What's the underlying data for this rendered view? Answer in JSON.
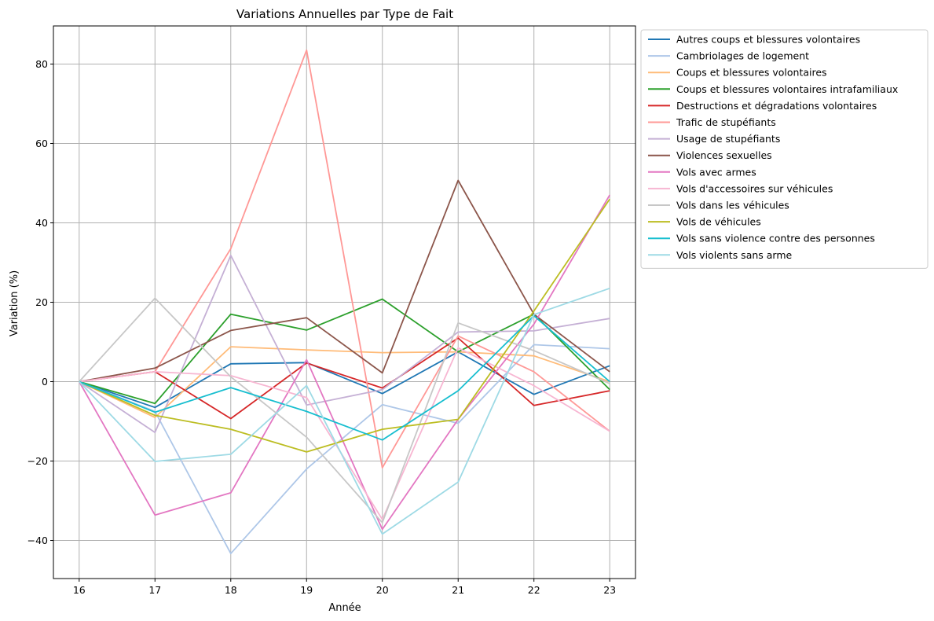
{
  "chart_data": {
    "type": "line",
    "title": "Variations Annuelles par Type de Fait",
    "xlabel": "Année",
    "ylabel": "Variation (%)",
    "x": [
      16,
      17,
      18,
      19,
      20,
      21,
      22,
      23
    ],
    "x_tick_labels": [
      "16",
      "17",
      "18",
      "19",
      "20",
      "21",
      "22",
      "23"
    ],
    "xlim": [
      15.66,
      23.34
    ],
    "ylim": [
      -49.6,
      89.6
    ],
    "y_ticks": [
      -40,
      -20,
      0,
      20,
      40,
      60,
      80
    ],
    "y_tick_labels": [
      "−40",
      "−20",
      "0",
      "20",
      "40",
      "60",
      "80"
    ],
    "grid": true,
    "legend_position": "outside-top-right",
    "series": [
      {
        "name": "Autres coups et blessures volontaires",
        "color": "#1f77b4",
        "values": [
          0,
          -6.5,
          4.5,
          4.8,
          -3.0,
          7.5,
          -3.2,
          4.0
        ]
      },
      {
        "name": "Cambriolages de logement",
        "color": "#aec7e8",
        "values": [
          0,
          -7.5,
          -43.3,
          -22.0,
          -5.8,
          -10.5,
          9.3,
          8.3
        ]
      },
      {
        "name": "Coups et blessures volontaires",
        "color": "#ffbb78",
        "values": [
          0,
          -9.0,
          8.8,
          8.0,
          7.3,
          7.5,
          6.5,
          0.0
        ]
      },
      {
        "name": "Coups et blessures volontaires intrafamiliaux",
        "color": "#2ca02c",
        "values": [
          0,
          -5.5,
          17.0,
          13.0,
          20.8,
          7.5,
          17.0,
          -2.0
        ]
      },
      {
        "name": "Destructions et dégradations volontaires",
        "color": "#d62728",
        "values": [
          0,
          2.5,
          -9.3,
          4.7,
          -1.6,
          11.0,
          -6.0,
          -2.3
        ]
      },
      {
        "name": "Trafic de stupéfiants",
        "color": "#ff9896",
        "values": [
          0,
          2.5,
          33.5,
          83.5,
          -21.7,
          11.5,
          2.5,
          -12.5
        ]
      },
      {
        "name": "Usage de stupéfiants",
        "color": "#c5b0d5",
        "values": [
          0,
          -12.8,
          31.8,
          -5.9,
          -2.0,
          12.5,
          12.8,
          15.9
        ]
      },
      {
        "name": "Violences sexuelles",
        "color": "#8c564b",
        "values": [
          0,
          3.4,
          12.9,
          16.1,
          2.2,
          50.7,
          17.0,
          2.5
        ]
      },
      {
        "name": "Vols avec armes",
        "color": "#e377c2",
        "values": [
          0,
          -33.6,
          -28.0,
          5.5,
          -37.2,
          -9.5,
          14.5,
          47.0
        ]
      },
      {
        "name": "Vols d'accessoires sur véhicules",
        "color": "#f7b6d2",
        "values": [
          0,
          2.5,
          1.5,
          -4.0,
          -34.7,
          8.5,
          -1.0,
          -12.5
        ]
      },
      {
        "name": "Vols dans les véhicules",
        "color": "#c7c7c7",
        "values": [
          0,
          21.0,
          1.2,
          -14.0,
          -35.5,
          14.8,
          7.8,
          -0.5
        ]
      },
      {
        "name": "Vols de véhicules",
        "color": "#bcbd22",
        "values": [
          0,
          -8.5,
          -12.0,
          -17.7,
          -12.0,
          -9.5,
          17.8,
          46.0
        ]
      },
      {
        "name": "Vols sans violence contre des personnes",
        "color": "#17becf",
        "values": [
          0,
          -7.7,
          -1.5,
          -7.5,
          -14.7,
          -2.3,
          16.6,
          0.0
        ]
      },
      {
        "name": "Vols violents sans arme",
        "color": "#9edae5",
        "values": [
          0,
          -20.1,
          -18.3,
          -1.0,
          -38.4,
          -25.3,
          16.9,
          23.5
        ]
      }
    ]
  }
}
